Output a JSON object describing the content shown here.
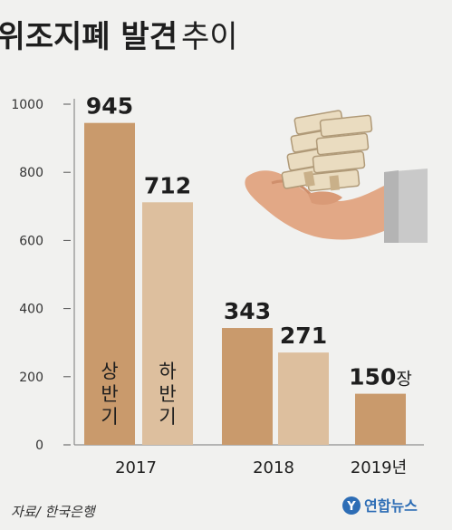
{
  "header": {
    "title_bold": "위조지폐 발견",
    "title_light": "추이"
  },
  "colors": {
    "background": "#f1f1ef",
    "bar_first_half": "#c99a6c",
    "bar_second_half": "#ddbf9e",
    "text": "#1e1e1e"
  },
  "chart_data": {
    "type": "bar",
    "title": "위조지폐 발견 추이",
    "ylim": [
      0,
      1000
    ],
    "yticks": [
      "0",
      "200",
      "400",
      "600",
      "800",
      "1000"
    ],
    "grid": false,
    "categories": [
      "2017",
      "2018",
      "2019년"
    ],
    "bars": [
      {
        "category": "2017",
        "half": "first",
        "value": 945,
        "label": "945",
        "inner_label": [
          "상",
          "반",
          "기"
        ]
      },
      {
        "category": "2017",
        "half": "second",
        "value": 712,
        "label": "712",
        "inner_label": [
          "하",
          "반",
          "기"
        ]
      },
      {
        "category": "2018",
        "half": "first",
        "value": 343,
        "label": "343"
      },
      {
        "category": "2018",
        "half": "second",
        "value": 271,
        "label": "271"
      },
      {
        "category": "2019년",
        "half": "first",
        "value": 150,
        "label": "150",
        "unit": "장"
      }
    ]
  },
  "footer": {
    "source": "자료/ 한국은행",
    "brand": "연합뉴스"
  },
  "illustration": {
    "icon": "hand-holding-money-icon"
  }
}
